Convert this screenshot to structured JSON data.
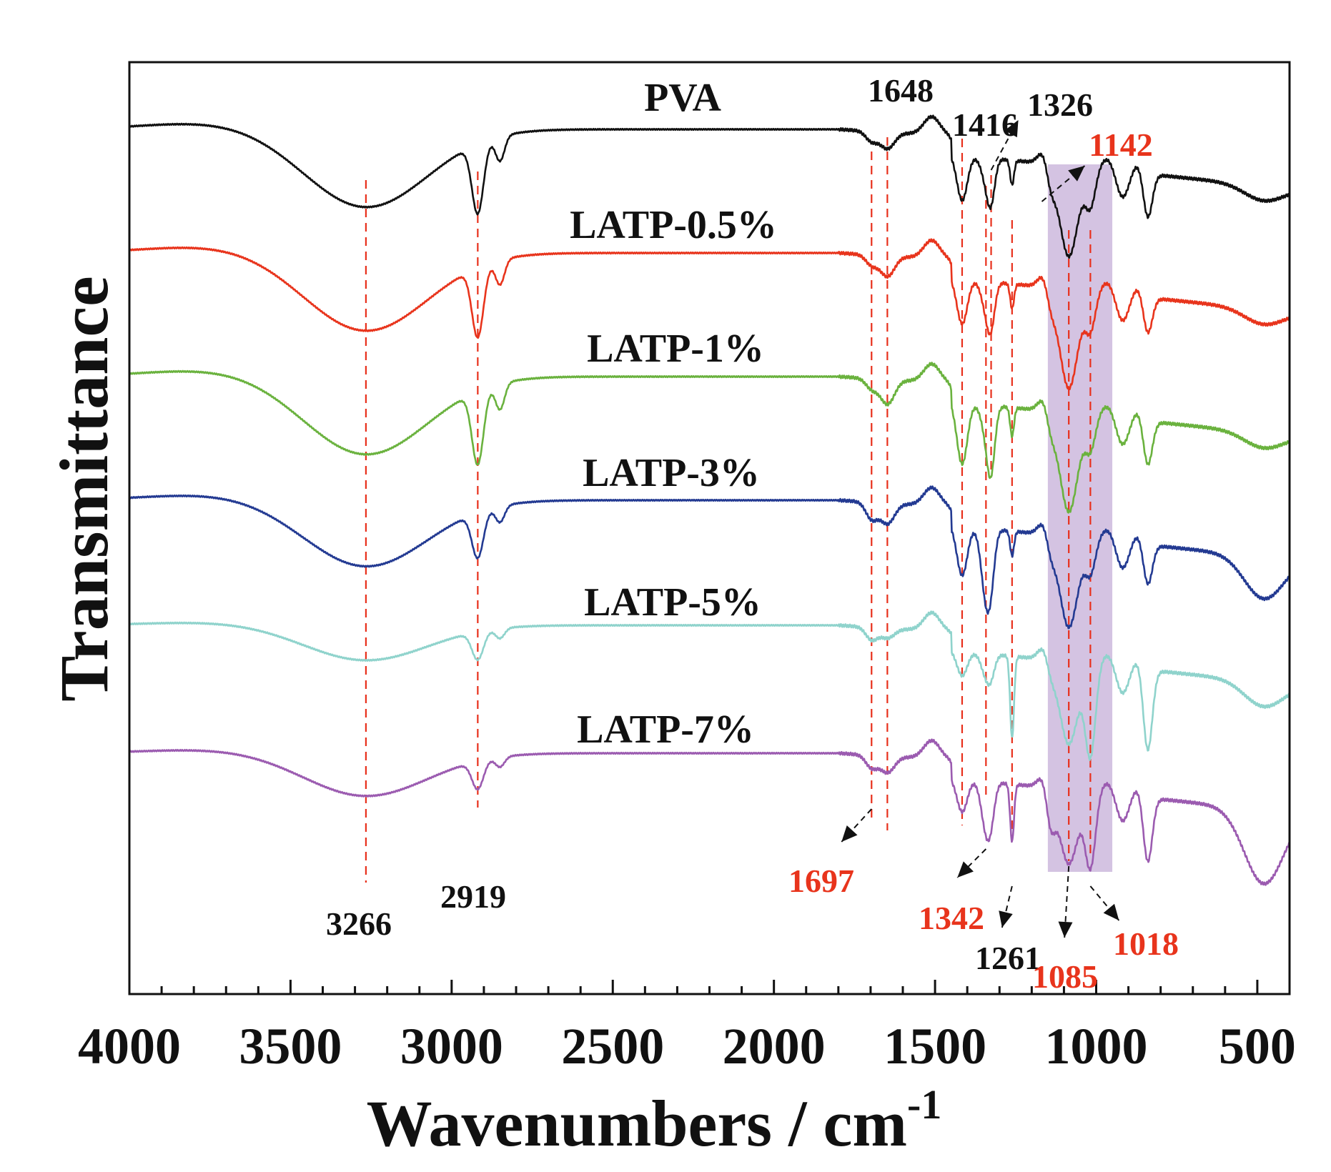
{
  "chart_data": {
    "type": "line",
    "title": "",
    "xlabel": "Wavenumbers / cm",
    "xlabel_superscript": "-1",
    "ylabel": "Transmittance",
    "xlim": [
      4000,
      400
    ],
    "xticks": [
      4000,
      3500,
      3000,
      2500,
      2000,
      1500,
      1000,
      500
    ],
    "y_units": "arbitrary (vertically offset spectra)",
    "grid": false,
    "colors": {
      "PVA": "#111111",
      "LATP-0.5%": "#e8341c",
      "LATP-1%": "#6ab23e",
      "LATP-3%": "#233a92",
      "LATP-5%": "#8fd3cc",
      "LATP-7%": "#9b5bb0",
      "peak_line": "#e8301c",
      "highlight": "#cdb8dd"
    },
    "highlight_band": {
      "from": 1150,
      "to": 950
    },
    "series": [
      {
        "name": "PVA",
        "offset": 0
      },
      {
        "name": "LATP-0.5%",
        "offset": 1
      },
      {
        "name": "LATP-1%",
        "offset": 2
      },
      {
        "name": "LATP-3%",
        "offset": 3
      },
      {
        "name": "LATP-5%",
        "offset": 4
      },
      {
        "name": "LATP-7%",
        "offset": 5
      }
    ],
    "peaks": [
      {
        "x": 3266,
        "label": "3266",
        "color": "#111111"
      },
      {
        "x": 2919,
        "label": "2919",
        "color": "#111111"
      },
      {
        "x": 1697,
        "label": "1697",
        "color": "#e8341c"
      },
      {
        "x": 1648,
        "label": "1648",
        "color": "#111111"
      },
      {
        "x": 1416,
        "label": "1416",
        "color": "#111111"
      },
      {
        "x": 1342,
        "label": "1342",
        "color": "#e8341c"
      },
      {
        "x": 1326,
        "label": "1326",
        "color": "#111111"
      },
      {
        "x": 1261,
        "label": "1261",
        "color": "#111111"
      },
      {
        "x": 1142,
        "label": "1142",
        "color": "#e8341c"
      },
      {
        "x": 1085,
        "label": "1085",
        "color": "#e8341c"
      },
      {
        "x": 1018,
        "label": "1018",
        "color": "#e8341c"
      }
    ]
  }
}
